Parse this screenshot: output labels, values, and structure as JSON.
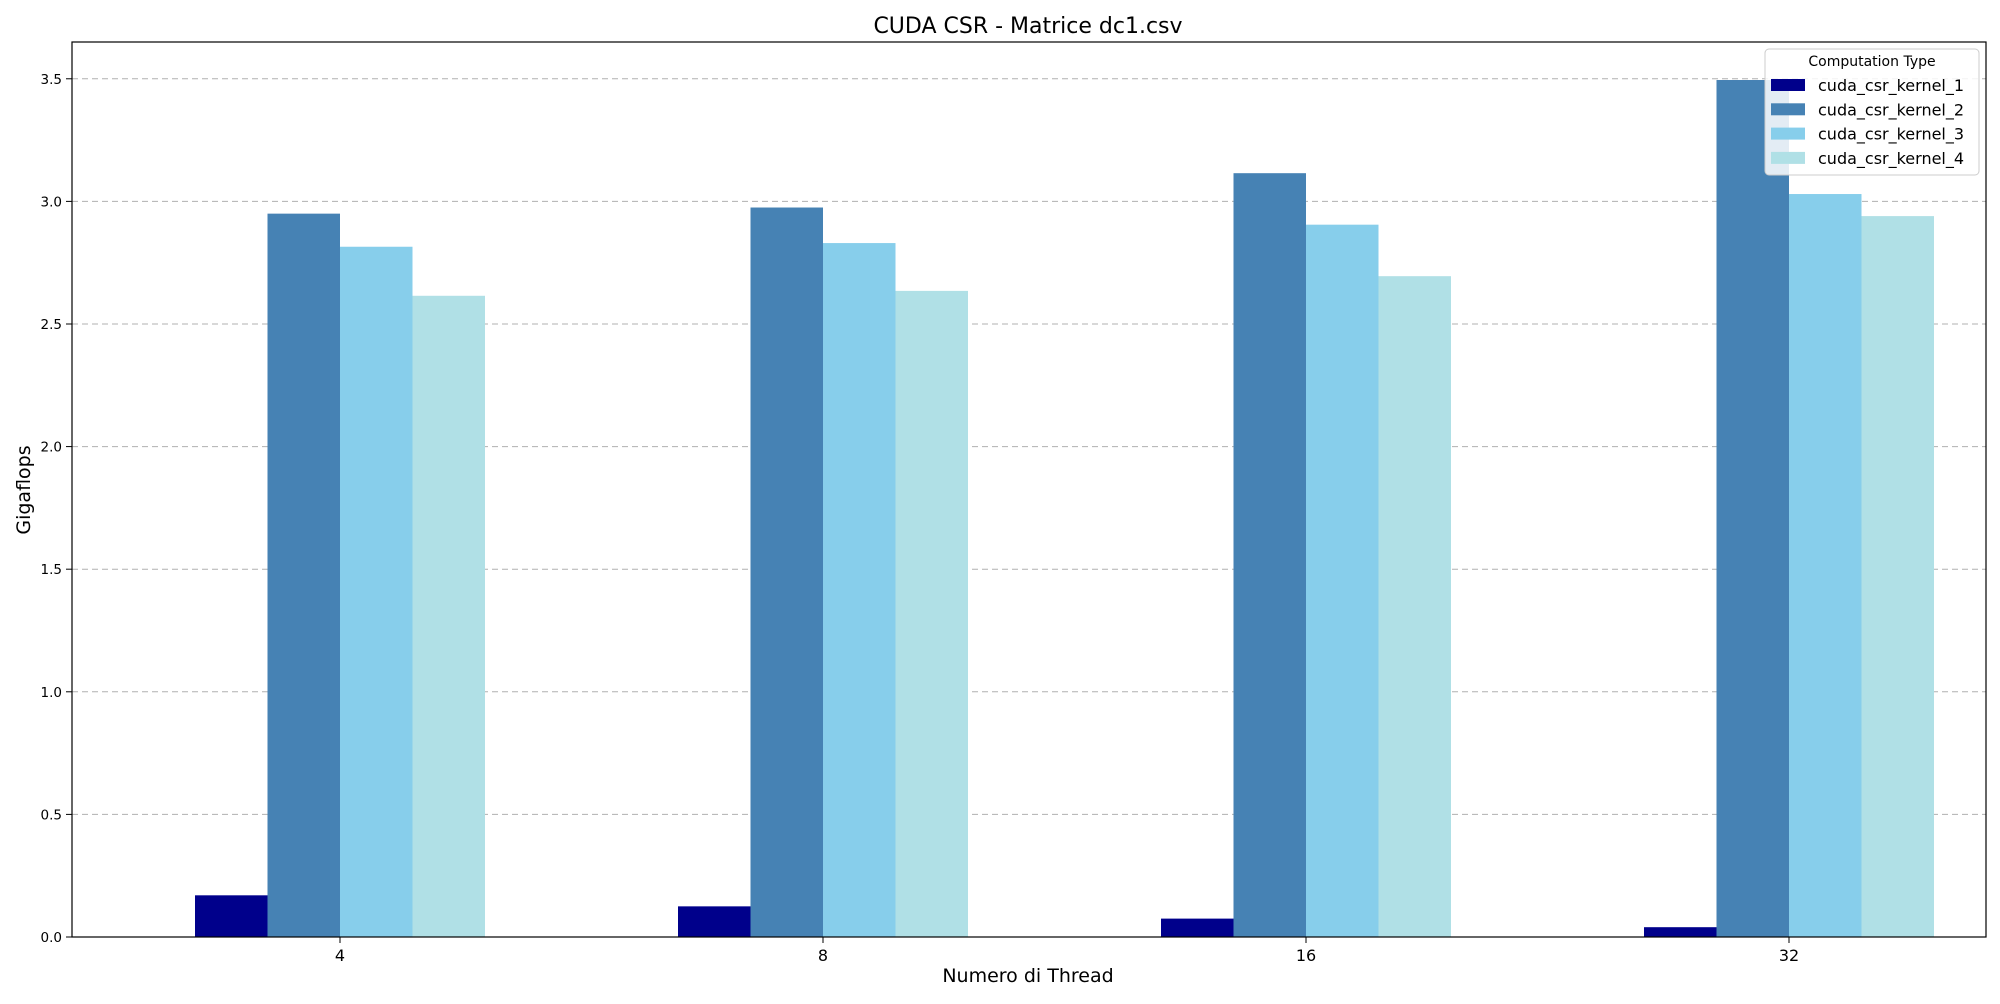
{
  "chart_data": {
    "type": "bar",
    "title": "CUDA CSR - Matrice dc1.csv",
    "xlabel": "Numero di Thread",
    "ylabel": "Gigaflops",
    "categories": [
      "4",
      "8",
      "16",
      "32"
    ],
    "ylim": [
      0,
      3.65
    ],
    "yticks": [
      0.0,
      0.5,
      1.0,
      1.5,
      2.0,
      2.5,
      3.0,
      3.5
    ],
    "ytick_labels": [
      "0.0",
      "0.5",
      "1.0",
      "1.5",
      "2.0",
      "2.5",
      "3.0",
      "3.5"
    ],
    "grid": "y-dashed",
    "legend": {
      "title": "Computation Type",
      "placement": "top-right"
    },
    "series": [
      {
        "name": "cuda_csr_kernel_1",
        "color": "#00008b",
        "values": [
          0.17,
          0.125,
          0.075,
          0.04
        ]
      },
      {
        "name": "cuda_csr_kernel_2",
        "color": "#4682b4",
        "values": [
          2.95,
          2.975,
          3.115,
          3.495
        ]
      },
      {
        "name": "cuda_csr_kernel_3",
        "color": "#87ceeb",
        "values": [
          2.815,
          2.83,
          2.905,
          3.03
        ]
      },
      {
        "name": "cuda_csr_kernel_4",
        "color": "#b0e0e6",
        "values": [
          2.615,
          2.635,
          2.695,
          2.94
        ]
      }
    ]
  }
}
